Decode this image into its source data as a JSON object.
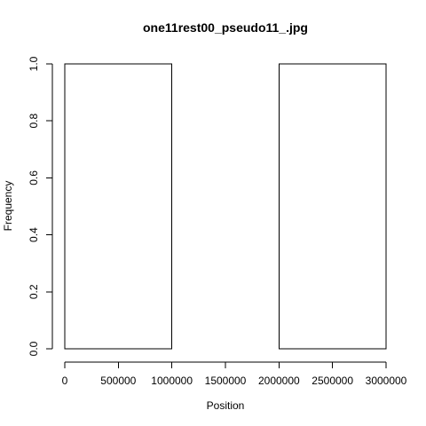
{
  "chart_data": {
    "type": "bar",
    "title": "one11rest00_pseudo11_.jpg",
    "xlabel": "Position",
    "ylabel": "Frequency",
    "bins": [
      {
        "start": 0,
        "end": 1000000,
        "value": 1
      },
      {
        "start": 1000000,
        "end": 2000000,
        "value": 0
      },
      {
        "start": 2000000,
        "end": 3000000,
        "value": 1
      }
    ],
    "xlim": [
      0,
      3000000
    ],
    "ylim": [
      0,
      1
    ],
    "x_ticks": [
      0,
      500000,
      1000000,
      1500000,
      2000000,
      2500000,
      3000000
    ],
    "x_tick_labels": [
      "0",
      "500000",
      "1000000",
      "1500000",
      "2000000",
      "2500000",
      "3000000"
    ],
    "y_ticks": [
      0,
      0.2,
      0.4,
      0.6,
      0.8,
      1.0
    ],
    "y_tick_labels": [
      "0.0",
      "0.2",
      "0.4",
      "0.6",
      "0.8",
      "1.0"
    ],
    "grid": false,
    "legend": "none",
    "bar_fill": "none",
    "bar_stroke": "#000000"
  }
}
